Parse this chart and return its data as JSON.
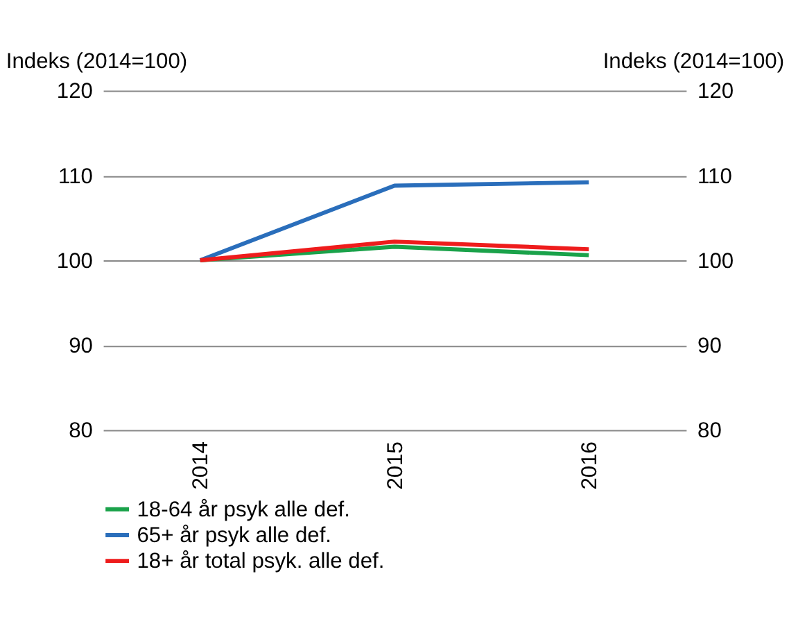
{
  "chart_data": {
    "type": "line",
    "ylabel": "Indeks (2014=100)",
    "y2label": "Indeks (2014=100)",
    "categories": [
      "2014",
      "2015",
      "2016"
    ],
    "series": [
      {
        "name": "18-64 år psyk alle def.",
        "color": "#1aa24a",
        "values": [
          100,
          101.6,
          100.6
        ]
      },
      {
        "name": "65+ år psyk alle def.",
        "color": "#2a6ebb",
        "values": [
          100,
          108.8,
          109.2
        ]
      },
      {
        "name": "18+ år total  psyk. alle def.",
        "color": "#ee1c1c",
        "values": [
          100,
          102.2,
          101.3
        ]
      }
    ],
    "ylim": [
      80,
      120
    ],
    "yticks": [
      80,
      90,
      100,
      110,
      120
    ],
    "y2lim": [
      80,
      120
    ],
    "y2ticks": [
      80,
      90,
      100,
      110,
      120
    ],
    "grid": "y",
    "legend": "bottom",
    "marker": "none",
    "line_style": "solid"
  }
}
